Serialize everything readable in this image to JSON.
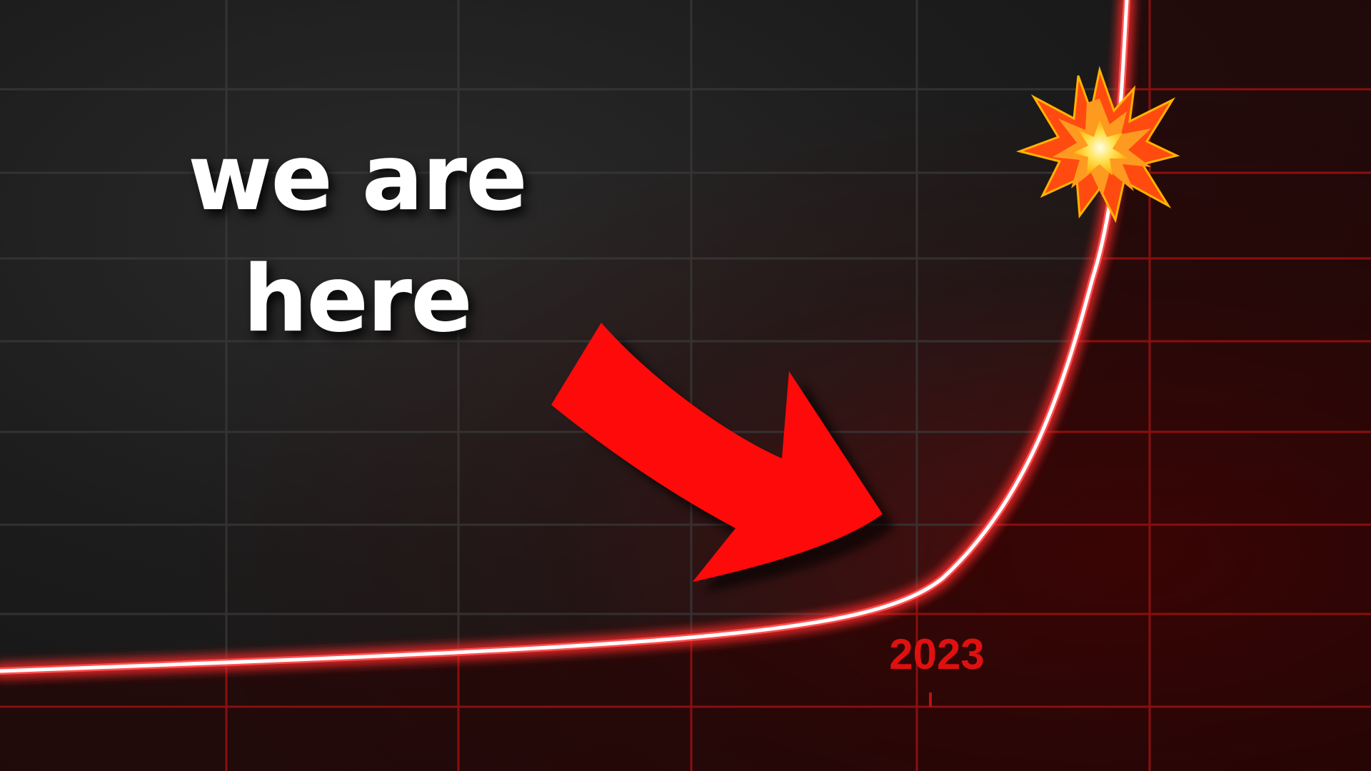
{
  "caption": {
    "line1": "we are",
    "line2": "here"
  },
  "axis": {
    "year_label": "2023"
  },
  "icons": {
    "marker": "red-curved-arrow-icon",
    "burst": "collision-burst-icon"
  },
  "colors": {
    "background": "#151515",
    "grid_dark": "#3a3a3a",
    "grid_red": "#8a0f0f",
    "curve_glow": "#ff2a2a",
    "curve_core": "#ffffff",
    "arrow": "#ff0a0a",
    "label_red": "#e01010",
    "caption": "#ffffff"
  }
}
